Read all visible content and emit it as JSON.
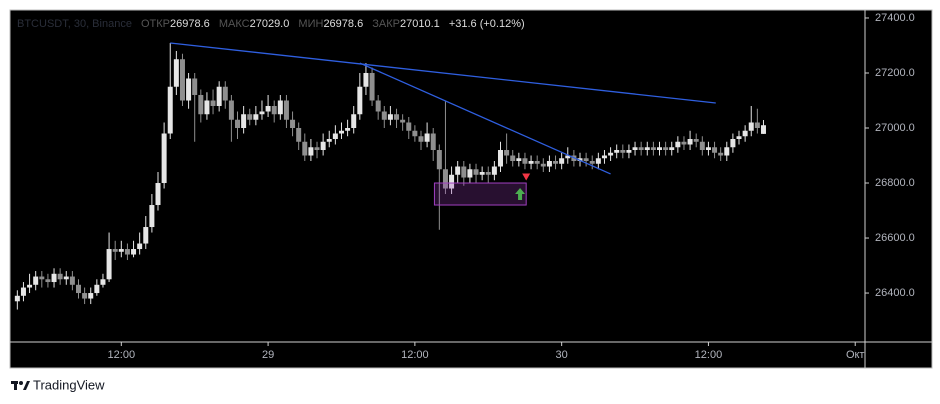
{
  "chart_data": {
    "type": "candlestick",
    "legend": {
      "symbol": "BTCUSDT, 30, Binance",
      "open_label": "ОТКР",
      "open": "26978.6",
      "high_label": "МАКС",
      "high": "27029.0",
      "low_label": "МИН",
      "low": "26978.6",
      "close_label": "ЗАКР",
      "close": "27010.1",
      "change": "+31.6 (+0.12%)"
    },
    "up_color": "#e6e6e6",
    "down_color": "#8f8f8f",
    "xlim": [
      2.9,
      72.8
    ],
    "xticks": [
      {
        "value": 12,
        "label": "12:00"
      },
      {
        "value": 24,
        "label": "29"
      },
      {
        "value": 36,
        "label": "12:00"
      },
      {
        "value": 48,
        "label": "30"
      },
      {
        "value": 60,
        "label": "12:00"
      },
      {
        "value": 72,
        "label": "Окт"
      }
    ],
    "ylim": [
      26222,
      27429
    ],
    "yticks": [
      {
        "value": 26400,
        "label": "26400.0"
      },
      {
        "value": 26600,
        "label": "26600.0"
      },
      {
        "value": 26800,
        "label": "26800.0"
      },
      {
        "value": 27000,
        "label": "27000.0"
      },
      {
        "value": 27200,
        "label": "27200.0"
      },
      {
        "value": 27400,
        "label": "27400.0"
      }
    ],
    "x": [
      3.5,
      4,
      4.5,
      5,
      5.5,
      6,
      6.5,
      7,
      7.5,
      8,
      8.5,
      9,
      9.5,
      10,
      10.5,
      11,
      11.5,
      12,
      12.5,
      13,
      13.5,
      14,
      14.5,
      15,
      15.5,
      16,
      16.5,
      17,
      17.5,
      18,
      18.5,
      19,
      19.5,
      20,
      20.5,
      21,
      21.5,
      22,
      22.5,
      23,
      23.5,
      24,
      24.5,
      25,
      25.5,
      26,
      26.5,
      27,
      27.5,
      28,
      28.5,
      29,
      29.5,
      30,
      30.5,
      31,
      31.5,
      32,
      32.5,
      33,
      33.5,
      34,
      34.5,
      35,
      35.5,
      36,
      36.5,
      37,
      37.5,
      38,
      38.5,
      39,
      39.5,
      40,
      40.5,
      41,
      41.5,
      42,
      42.5,
      43,
      43.5,
      44,
      44.5,
      45,
      45.5,
      46,
      46.5,
      47,
      47.5,
      48,
      48.5,
      49,
      49.5,
      50,
      50.5,
      51,
      51.5,
      52,
      52.5,
      53,
      53.5,
      54,
      54.5,
      55,
      55.5,
      56,
      56.5,
      57,
      57.5,
      58,
      58.5,
      59,
      59.5,
      60,
      60.5,
      61,
      61.5,
      62,
      62.5,
      63,
      63.5,
      64,
      64.5
    ],
    "open": [
      26370,
      26390,
      26420,
      26430,
      26460,
      26450,
      26440,
      26470,
      26450,
      26460,
      26430,
      26400,
      26380,
      26400,
      26430,
      26450,
      26560,
      26550,
      26560,
      26540,
      26560,
      26580,
      26640,
      26720,
      26800,
      26980,
      27150,
      27250,
      27100,
      27180,
      27120,
      27050,
      27100,
      27080,
      27150,
      27100,
      27030,
      27000,
      27050,
      27030,
      27050,
      27060,
      27080,
      27050,
      27100,
      27030,
      27000,
      26950,
      26900,
      26930,
      26920,
      26950,
      26960,
      26980,
      26990,
      27000,
      27050,
      27150,
      27200,
      27100,
      27060,
      27030,
      27050,
      27030,
      27020,
      26990,
      26970,
      26950,
      26980,
      26920,
      26850,
      26780,
      26830,
      26860,
      26820,
      26850,
      26830,
      26840,
      26830,
      26860,
      26920,
      26900,
      26880,
      26890,
      26870,
      26880,
      26870,
      26860,
      26880,
      26870,
      26890,
      26900,
      26880,
      26890,
      26880,
      26870,
      26890,
      26900,
      26910,
      26920,
      26910,
      26920,
      26930,
      26920,
      26930,
      26920,
      26930,
      26920,
      26930,
      26950,
      26940,
      26960,
      26950,
      26920,
      26930,
      26910,
      26900,
      26930,
      26960,
      26970,
      26990,
      27020,
      26978.6
    ],
    "high": [
      26410,
      26440,
      26470,
      26480,
      26480,
      26470,
      26490,
      26490,
      26480,
      26480,
      26450,
      26420,
      26420,
      26450,
      26470,
      26620,
      26590,
      26590,
      26580,
      26590,
      26620,
      26680,
      26760,
      26840,
      27020,
      27309,
      27280,
      27270,
      27200,
      27200,
      27140,
      27130,
      27140,
      27170,
      27170,
      27120,
      27060,
      27080,
      27070,
      27080,
      27100,
      27120,
      27100,
      27120,
      27120,
      27060,
      27020,
      26980,
      26960,
      26950,
      26980,
      26990,
      27010,
      27020,
      27030,
      27080,
      27200,
      27236,
      27220,
      27120,
      27080,
      27080,
      27070,
      27050,
      27040,
      27010,
      26990,
      27020,
      27000,
      26940,
      27100,
      26860,
      26880,
      26880,
      26870,
      26870,
      26860,
      26860,
      26880,
      26950,
      26980,
      26920,
      26910,
      26910,
      26900,
      26900,
      26890,
      26900,
      26900,
      26910,
      26930,
      26920,
      26910,
      26910,
      26900,
      26910,
      26920,
      26930,
      26940,
      26940,
      26940,
      26950,
      26950,
      26950,
      26950,
      26950,
      26950,
      26950,
      26970,
      26970,
      26990,
      26980,
      26970,
      26950,
      26950,
      26930,
      26950,
      26980,
      26990,
      27010,
      27080,
      27070,
      27029
    ],
    "low": [
      26340,
      26370,
      26400,
      26410,
      26420,
      26420,
      26420,
      26430,
      26430,
      26410,
      26380,
      26360,
      26360,
      26390,
      26420,
      26440,
      26520,
      26530,
      26520,
      26530,
      26540,
      26560,
      26620,
      26700,
      26780,
      26960,
      27120,
      27080,
      27070,
      26950,
      27020,
      27030,
      27050,
      27060,
      27070,
      26950,
      26960,
      26980,
      27010,
      27010,
      27030,
      27040,
      27020,
      27030,
      27000,
      26970,
      26920,
      26880,
      26880,
      26890,
      26900,
      26930,
      26940,
      26960,
      26970,
      26980,
      27030,
      27120,
      27080,
      27030,
      27000,
      27010,
      27000,
      26990,
      26960,
      26950,
      26920,
      26930,
      26880,
      26630,
      26760,
      26760,
      26800,
      26790,
      26800,
      26800,
      26810,
      26800,
      26810,
      26840,
      26870,
      26860,
      26860,
      26850,
      26850,
      26850,
      26840,
      26840,
      26850,
      26850,
      26870,
      26860,
      26860,
      26860,
      26850,
      26850,
      26870,
      26880,
      26890,
      26890,
      26890,
      26900,
      26900,
      26900,
      26900,
      26900,
      26900,
      26900,
      26910,
      26920,
      26920,
      26930,
      26900,
      26900,
      26890,
      26880,
      26880,
      26910,
      26940,
      26950,
      26970,
      26980,
      26978.6
    ],
    "close": [
      26390,
      26420,
      26430,
      26460,
      26450,
      26440,
      26470,
      26450,
      26460,
      26430,
      26400,
      26380,
      26400,
      26430,
      26450,
      26560,
      26550,
      26560,
      26540,
      26560,
      26580,
      26640,
      26720,
      26800,
      26980,
      27150,
      27250,
      27100,
      27180,
      27120,
      27050,
      27100,
      27080,
      27150,
      27100,
      27030,
      27000,
      27050,
      27030,
      27050,
      27060,
      27080,
      27050,
      27100,
      27030,
      27000,
      26950,
      26900,
      26930,
      26920,
      26950,
      26960,
      26980,
      26990,
      27000,
      27050,
      27150,
      27200,
      27100,
      27060,
      27030,
      27050,
      27030,
      27020,
      26990,
      26970,
      26950,
      26980,
      26920,
      26850,
      26780,
      26830,
      26860,
      26820,
      26850,
      26830,
      26840,
      26830,
      26860,
      26920,
      26900,
      26880,
      26890,
      26870,
      26880,
      26870,
      26860,
      26880,
      26870,
      26890,
      26900,
      26880,
      26890,
      26880,
      26870,
      26890,
      26900,
      26910,
      26920,
      26910,
      26920,
      26930,
      26920,
      26930,
      26920,
      26930,
      26920,
      26930,
      26950,
      26940,
      26960,
      26950,
      26920,
      26930,
      26910,
      26900,
      26930,
      26960,
      26970,
      26990,
      27020,
      27000,
      27010.1
    ],
    "trend_lines": [
      {
        "color": "#2f5fe0",
        "x": [
          16.0,
          60.6
        ],
        "y": [
          27309,
          27091
        ]
      },
      {
        "color": "#2f5fe0",
        "x": [
          31.5,
          52.0
        ],
        "y": [
          27236,
          26833
        ]
      }
    ],
    "zone": {
      "color": "#a040c0",
      "x": [
        37.6,
        45.1
      ],
      "y": [
        26720,
        26800
      ]
    },
    "markers": [
      {
        "color": "#4caf50",
        "x": 44.6,
        "y": 26760
      },
      {
        "color": "#f23645",
        "x": 45.1,
        "y": 26820
      }
    ]
  },
  "footer": {
    "brand": "TradingView"
  }
}
